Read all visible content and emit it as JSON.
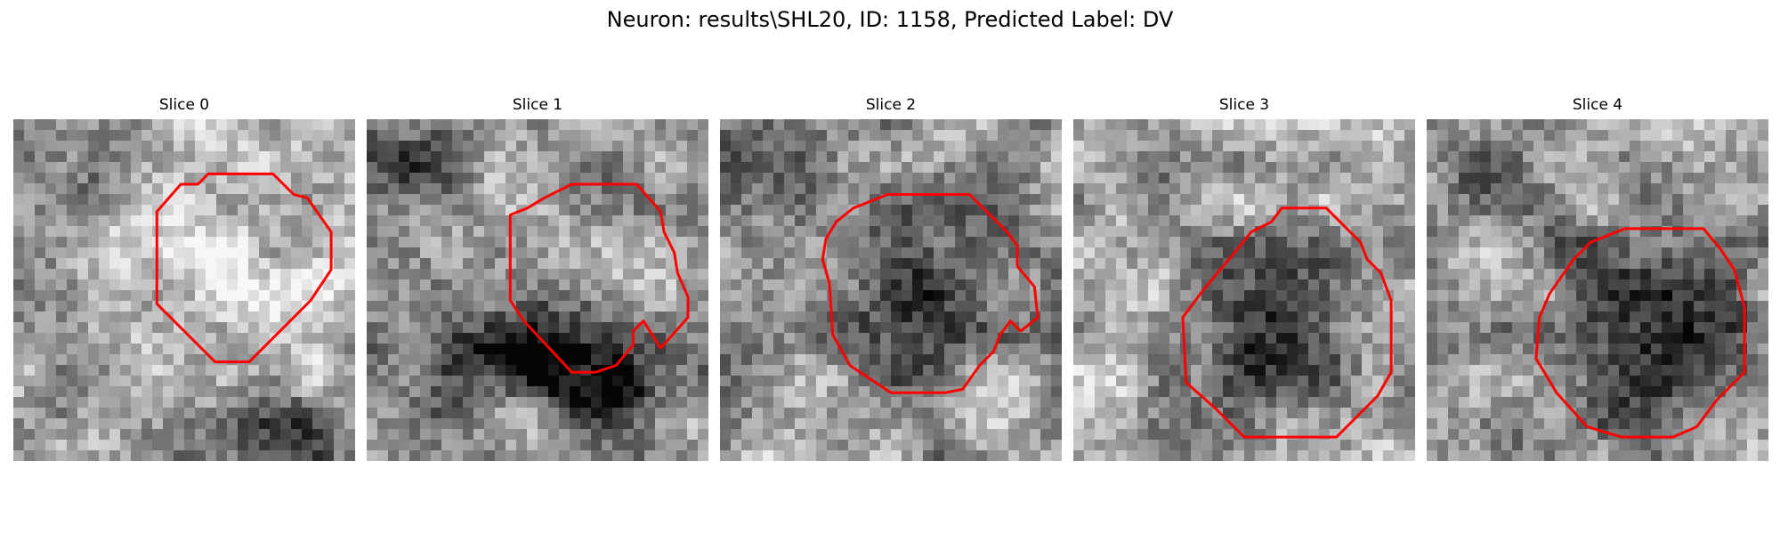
{
  "figure": {
    "title": "Neuron: results\\SHL20, ID: 1158, Predicted Label: DV"
  },
  "panels": [
    {
      "title": "Slice 0",
      "image": "grayscale-microscopy-patch",
      "contour_color": "#ff0000"
    },
    {
      "title": "Slice 1",
      "image": "grayscale-microscopy-patch",
      "contour_color": "#ff0000"
    },
    {
      "title": "Slice 2",
      "image": "grayscale-microscopy-patch",
      "contour_color": "#ff0000"
    },
    {
      "title": "Slice 3",
      "image": "grayscale-microscopy-patch",
      "contour_color": "#ff0000"
    },
    {
      "title": "Slice 4",
      "image": "grayscale-microscopy-patch",
      "contour_color": "#ff0000"
    }
  ]
}
